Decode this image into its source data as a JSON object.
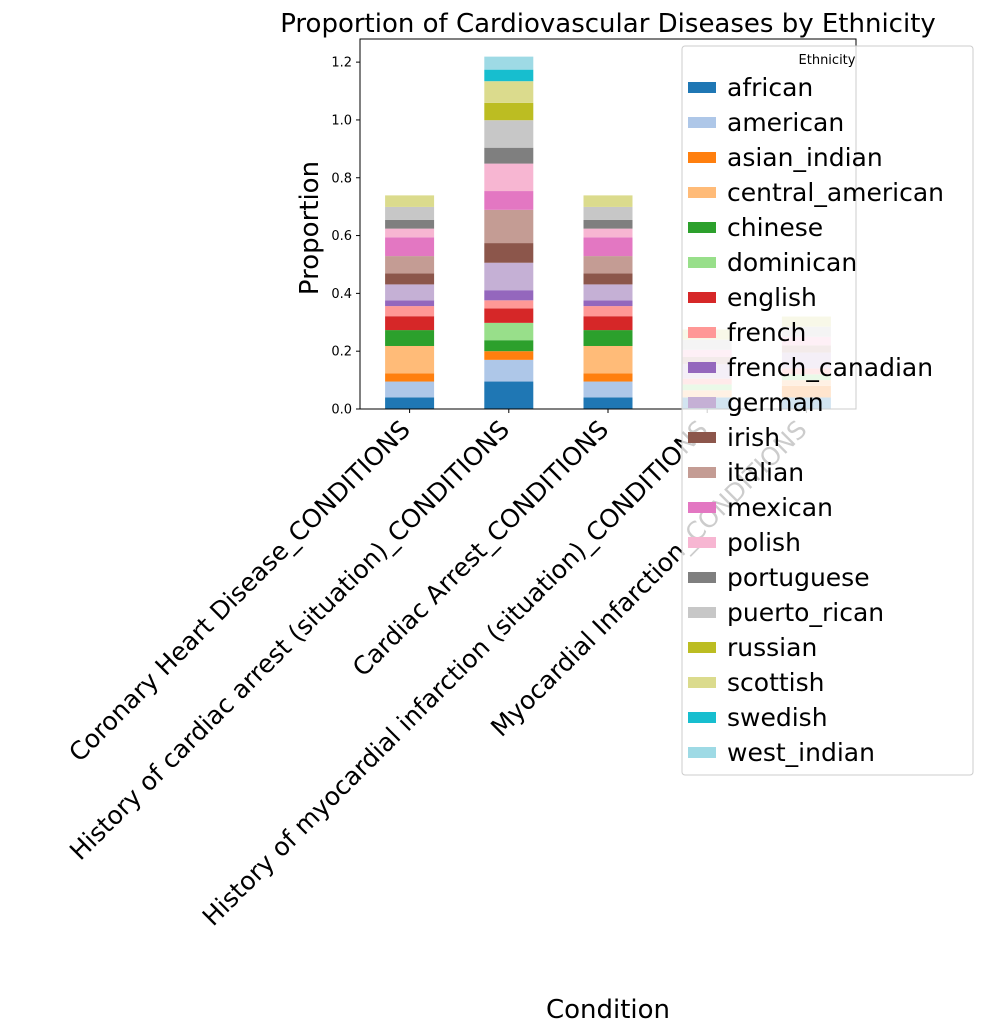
{
  "chart_data": {
    "type": "bar",
    "stacked": true,
    "title": "Proportion of Cardiovascular Diseases by Ethnicity",
    "xlabel": "Condition",
    "ylabel": "Proportion",
    "ylim": [
      0,
      1.28
    ],
    "yticks": [
      0.0,
      0.2,
      0.4,
      0.6,
      0.8,
      1.0,
      1.2
    ],
    "ytick_labels": [
      "0.0",
      "0.2",
      "0.4",
      "0.6",
      "0.8",
      "1.0",
      "1.2"
    ],
    "grid": false,
    "legend_title": "Ethnicity",
    "legend_position": "right",
    "categories": [
      "Coronary Heart Disease_CONDITIONS",
      "History of cardiac arrest (situation)_CONDITIONS",
      "Cardiac Arrest_CONDITIONS",
      "History of myocardial infarction (situation)_CONDITIONS",
      "Myocardial Infarction_CONDITIONS"
    ],
    "series": [
      {
        "name": "african",
        "color": "#1f77b4",
        "values": [
          0.04,
          0.095,
          0.04,
          0.04,
          0.04
        ]
      },
      {
        "name": "american",
        "color": "#aec7e8",
        "values": [
          0.055,
          0.075,
          0.055,
          0.0,
          0.0
        ]
      },
      {
        "name": "asian_indian",
        "color": "#ff7f0e",
        "values": [
          0.028,
          0.03,
          0.028,
          0.0,
          0.04
        ]
      },
      {
        "name": "central_american",
        "color": "#ffbb78",
        "values": [
          0.095,
          0.0,
          0.095,
          0.025,
          0.02
        ]
      },
      {
        "name": "chinese",
        "color": "#2ca02c",
        "values": [
          0.055,
          0.038,
          0.055,
          0.0,
          0.0
        ]
      },
      {
        "name": "dominican",
        "color": "#98df8a",
        "values": [
          0.0,
          0.06,
          0.0,
          0.02,
          0.02
        ]
      },
      {
        "name": "english",
        "color": "#d62728",
        "values": [
          0.048,
          0.05,
          0.048,
          0.0,
          0.0
        ]
      },
      {
        "name": "french",
        "color": "#ff9896",
        "values": [
          0.035,
          0.028,
          0.035,
          0.02,
          0.02
        ]
      },
      {
        "name": "french_canadian",
        "color": "#9467bd",
        "values": [
          0.02,
          0.035,
          0.02,
          0.0,
          0.0
        ]
      },
      {
        "name": "german",
        "color": "#c5b0d5",
        "values": [
          0.055,
          0.095,
          0.055,
          0.05,
          0.055
        ]
      },
      {
        "name": "irish",
        "color": "#8c564b",
        "values": [
          0.038,
          0.068,
          0.038,
          0.0,
          0.0
        ]
      },
      {
        "name": "italian",
        "color": "#c49c94",
        "values": [
          0.06,
          0.115,
          0.06,
          0.025,
          0.025
        ]
      },
      {
        "name": "mexican",
        "color": "#e377c2",
        "values": [
          0.065,
          0.065,
          0.065,
          0.0,
          0.0
        ]
      },
      {
        "name": "polish",
        "color": "#f7b6d2",
        "values": [
          0.03,
          0.095,
          0.03,
          0.025,
          0.03
        ]
      },
      {
        "name": "portuguese",
        "color": "#7f7f7f",
        "values": [
          0.03,
          0.055,
          0.03,
          0.0,
          0.0
        ]
      },
      {
        "name": "puerto_rican",
        "color": "#c7c7c7",
        "values": [
          0.045,
          0.095,
          0.045,
          0.035,
          0.035
        ]
      },
      {
        "name": "russian",
        "color": "#bcbd22",
        "values": [
          0.0,
          0.06,
          0.0,
          0.0,
          0.0
        ]
      },
      {
        "name": "scottish",
        "color": "#dbdb8d",
        "values": [
          0.04,
          0.075,
          0.04,
          0.035,
          0.035
        ]
      },
      {
        "name": "swedish",
        "color": "#17becf",
        "values": [
          0.0,
          0.04,
          0.0,
          0.0,
          0.0
        ]
      },
      {
        "name": "west_indian",
        "color": "#9edae5",
        "values": [
          0.0,
          0.045,
          0.0,
          0.0,
          0.0
        ]
      }
    ]
  }
}
